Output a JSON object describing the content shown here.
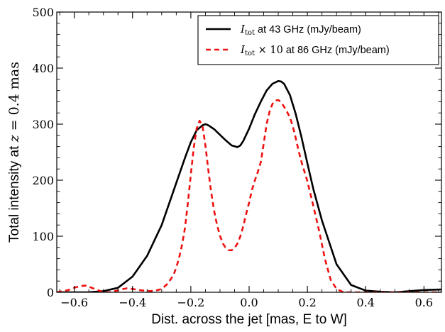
{
  "chart_data": {
    "type": "line",
    "title": "",
    "xlabel": "Dist. across the jet [mas, E to W]",
    "ylabel_parts": {
      "prefix": "Total intensity at ",
      "math_var": "z",
      "math_rest": " = 0.4 mas"
    },
    "xlim": [
      -0.66,
      0.66
    ],
    "ylim": [
      0,
      500
    ],
    "xticks": [
      -0.6,
      -0.4,
      -0.2,
      0.0,
      0.2,
      0.4,
      0.6
    ],
    "xtick_labels": [
      "−0.6",
      "−0.4",
      "−0.2",
      "0.0",
      "0.2",
      "0.4",
      "0.6"
    ],
    "yticks": [
      0,
      100,
      200,
      300,
      400,
      500
    ],
    "ytick_labels": [
      "0",
      "100",
      "200",
      "300",
      "400",
      "500"
    ],
    "grid": false,
    "legend_position": "top-right",
    "series": [
      {
        "legend_math": "I",
        "legend_sub": "tot",
        "legend_mid": "",
        "legend_text": " at 43 GHz (mJy/beam)",
        "color": "#000000",
        "style": "solid",
        "x": [
          -0.66,
          -0.55,
          -0.5,
          -0.45,
          -0.4,
          -0.35,
          -0.3,
          -0.25,
          -0.22,
          -0.2,
          -0.18,
          -0.16,
          -0.15,
          -0.14,
          -0.12,
          -0.1,
          -0.08,
          -0.06,
          -0.04,
          -0.03,
          -0.02,
          0.0,
          0.02,
          0.04,
          0.06,
          0.08,
          0.1,
          0.11,
          0.12,
          0.14,
          0.16,
          0.18,
          0.2,
          0.22,
          0.25,
          0.3,
          0.35,
          0.4,
          0.45,
          0.5,
          0.55,
          0.6,
          0.66
        ],
        "y": [
          0,
          0,
          2,
          8,
          28,
          65,
          120,
          195,
          240,
          268,
          289,
          298,
          300,
          298,
          291,
          281,
          271,
          262,
          259,
          262,
          270,
          292,
          318,
          340,
          360,
          372,
          377,
          376,
          372,
          352,
          318,
          276,
          230,
          185,
          128,
          50,
          13,
          3,
          1,
          0,
          2,
          4,
          5
        ]
      },
      {
        "legend_math": "I",
        "legend_sub": "tot",
        "legend_mid": " × 10",
        "legend_text": " at 86 GHz (mJy/beam)",
        "color": "#ee1111",
        "style": "dashed",
        "x": [
          -0.66,
          -0.62,
          -0.6,
          -0.58,
          -0.56,
          -0.54,
          -0.52,
          -0.5,
          -0.48,
          -0.46,
          -0.44,
          -0.42,
          -0.4,
          -0.38,
          -0.36,
          -0.34,
          -0.32,
          -0.3,
          -0.28,
          -0.26,
          -0.25,
          -0.24,
          -0.23,
          -0.22,
          -0.21,
          -0.2,
          -0.19,
          -0.18,
          -0.17,
          -0.16,
          -0.15,
          -0.14,
          -0.13,
          -0.12,
          -0.11,
          -0.1,
          -0.09,
          -0.08,
          -0.07,
          -0.06,
          -0.05,
          -0.04,
          -0.03,
          -0.02,
          -0.01,
          0.0,
          0.01,
          0.02,
          0.03,
          0.04,
          0.05,
          0.06,
          0.07,
          0.08,
          0.09,
          0.1,
          0.11,
          0.12,
          0.13,
          0.14,
          0.15,
          0.16,
          0.17,
          0.18,
          0.2,
          0.22,
          0.24,
          0.26,
          0.28,
          0.3,
          0.32,
          0.33,
          0.34,
          0.36,
          0.4,
          0.5,
          0.6,
          0.66
        ],
        "y": [
          0,
          4,
          8,
          11,
          12,
          8,
          4,
          0,
          0,
          2,
          5,
          7,
          6,
          4,
          3,
          2,
          3,
          6,
          15,
          30,
          44,
          62,
          85,
          115,
          160,
          210,
          258,
          292,
          306,
          297,
          262,
          218,
          178,
          145,
          120,
          101,
          87,
          79,
          75,
          75,
          79,
          87,
          100,
          118,
          140,
          160,
          183,
          200,
          215,
          232,
          265,
          300,
          322,
          336,
          342,
          343,
          339,
          331,
          322,
          312,
          296,
          275,
          252,
          232,
          198,
          155,
          110,
          60,
          22,
          6,
          1,
          0,
          0,
          0,
          0,
          0,
          0,
          0
        ]
      }
    ]
  },
  "colors": {
    "axis": "#000000",
    "black_curve": "#000000",
    "red_curve": "#ee1111",
    "background": "#ffffff"
  }
}
